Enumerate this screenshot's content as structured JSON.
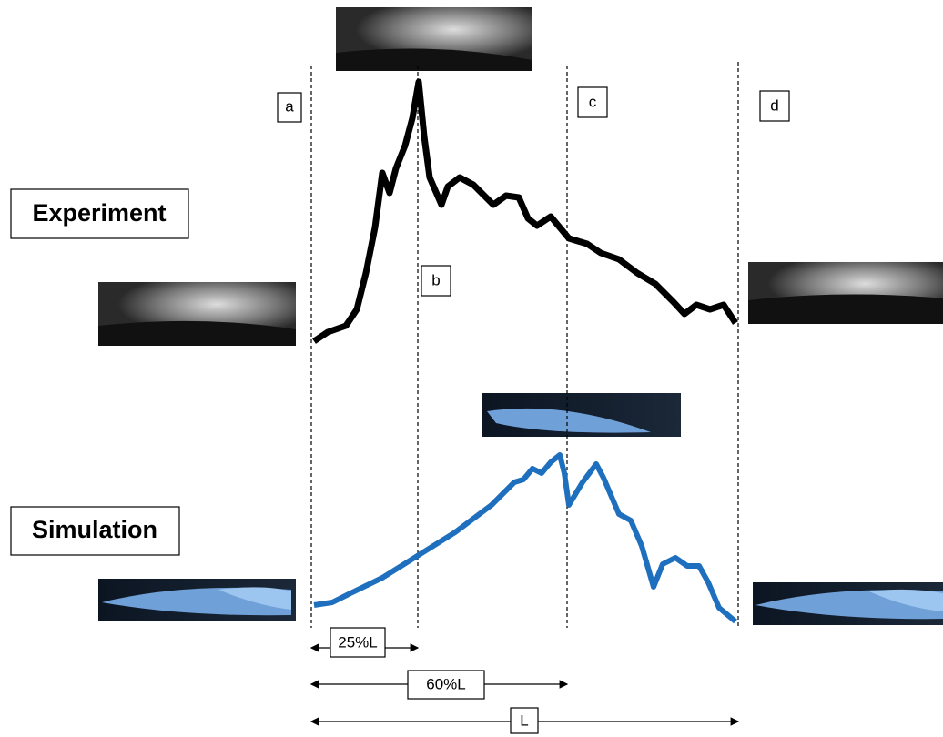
{
  "row_labels": {
    "experiment": "Experiment",
    "simulation": "Simulation"
  },
  "stations": [
    "a",
    "b",
    "c",
    "d"
  ],
  "dimensions": [
    "25%L",
    "60%L",
    "L"
  ]
}
